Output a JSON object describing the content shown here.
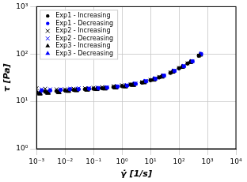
{
  "chart_data": {
    "type": "scatter",
    "x_label": "γ̇ [1/s]",
    "y_label": "τ [Pa]",
    "log": true,
    "grid": true,
    "legend": "upper left",
    "xlim": [
      0.001,
      10000
    ],
    "ylim": [
      1,
      1000
    ],
    "xticks": [
      {
        "value": 0.001,
        "label": "10⁻³"
      },
      {
        "value": 0.01,
        "label": "10⁻²"
      },
      {
        "value": 0.1,
        "label": "10⁻¹"
      },
      {
        "value": 1,
        "label": "10⁰"
      },
      {
        "value": 10,
        "label": "10¹"
      },
      {
        "value": 100,
        "label": "10²"
      },
      {
        "value": 1000,
        "label": "10³"
      },
      {
        "value": 10000,
        "label": "10⁴"
      }
    ],
    "yticks": [
      {
        "value": 1,
        "label": "10⁰"
      },
      {
        "value": 10,
        "label": "10¹"
      },
      {
        "value": 100,
        "label": "10²"
      },
      {
        "value": 1000,
        "label": "10³"
      }
    ],
    "series": [
      {
        "name": "Exp1 - Increasing",
        "color": "#000000",
        "marker": "circle",
        "x": [
          0.001,
          0.002,
          0.005,
          0.01,
          0.02,
          0.05,
          0.1,
          0.2,
          0.5,
          1,
          2,
          5,
          10,
          20,
          50,
          100,
          200,
          500
        ],
        "values": [
          15.5,
          16,
          16.5,
          17,
          17.5,
          18,
          18.5,
          19,
          20,
          21,
          22.5,
          25,
          28,
          32,
          40,
          50,
          63,
          92
        ]
      },
      {
        "name": "Exp1 - Decreasing",
        "color": "#0000ff",
        "marker": "circle",
        "x": [
          0.0015,
          0.003,
          0.007,
          0.015,
          0.03,
          0.07,
          0.15,
          0.3,
          0.7,
          1.5,
          3,
          7,
          15,
          30,
          70,
          150,
          300,
          600
        ],
        "values": [
          17,
          17,
          17.5,
          18,
          18,
          18.5,
          19,
          19.5,
          20.5,
          21.5,
          23.5,
          26.5,
          30,
          35,
          44,
          55,
          70,
          100
        ]
      },
      {
        "name": "Exp2 - Increasing",
        "color": "#000000",
        "marker": "x",
        "x": [
          0.001,
          0.002,
          0.005,
          0.01,
          0.02,
          0.05,
          0.1,
          0.2,
          0.5,
          1,
          2,
          5,
          10,
          20,
          50,
          100,
          200,
          500
        ],
        "values": [
          19,
          18.5,
          18,
          18,
          18.5,
          19,
          19.5,
          20,
          21,
          22,
          23,
          25.5,
          28.5,
          33,
          41,
          51,
          64,
          93
        ]
      },
      {
        "name": "Exp2 - Decreasing",
        "color": "#0000ff",
        "marker": "x",
        "x": [
          0.0015,
          0.003,
          0.007,
          0.015,
          0.03,
          0.07,
          0.15,
          0.3,
          0.7,
          1.5,
          3,
          7,
          15,
          30,
          70,
          150,
          300,
          600
        ],
        "values": [
          18,
          18,
          18,
          18.5,
          19,
          19,
          19.5,
          20,
          21,
          22,
          24,
          27,
          30.5,
          35.5,
          44.5,
          56,
          71,
          100
        ]
      },
      {
        "name": "Exp3 - Increasing",
        "color": "#000000",
        "marker": "triangle",
        "x": [
          0.0013,
          0.0025,
          0.006,
          0.013,
          0.025,
          0.06,
          0.13,
          0.25,
          0.6,
          1.3,
          2.5,
          6,
          13,
          25,
          60,
          130,
          250,
          550
        ],
        "values": [
          14.5,
          15,
          15.5,
          16.5,
          17,
          17.5,
          18,
          18.5,
          19.5,
          20.5,
          22,
          25,
          28.5,
          33,
          42,
          53,
          67,
          96
        ]
      },
      {
        "name": "Exp3 - Decreasing",
        "color": "#0000ff",
        "marker": "triangle",
        "x": [
          0.0013,
          0.0025,
          0.006,
          0.013,
          0.025,
          0.06,
          0.13,
          0.25,
          0.6,
          1.3,
          2.5,
          6,
          13,
          25,
          60,
          130,
          250,
          550
        ],
        "values": [
          15,
          15.5,
          16,
          17,
          17.5,
          18,
          18.5,
          19,
          20,
          21,
          23,
          26,
          29.5,
          34,
          43,
          54,
          68,
          98
        ]
      }
    ]
  }
}
